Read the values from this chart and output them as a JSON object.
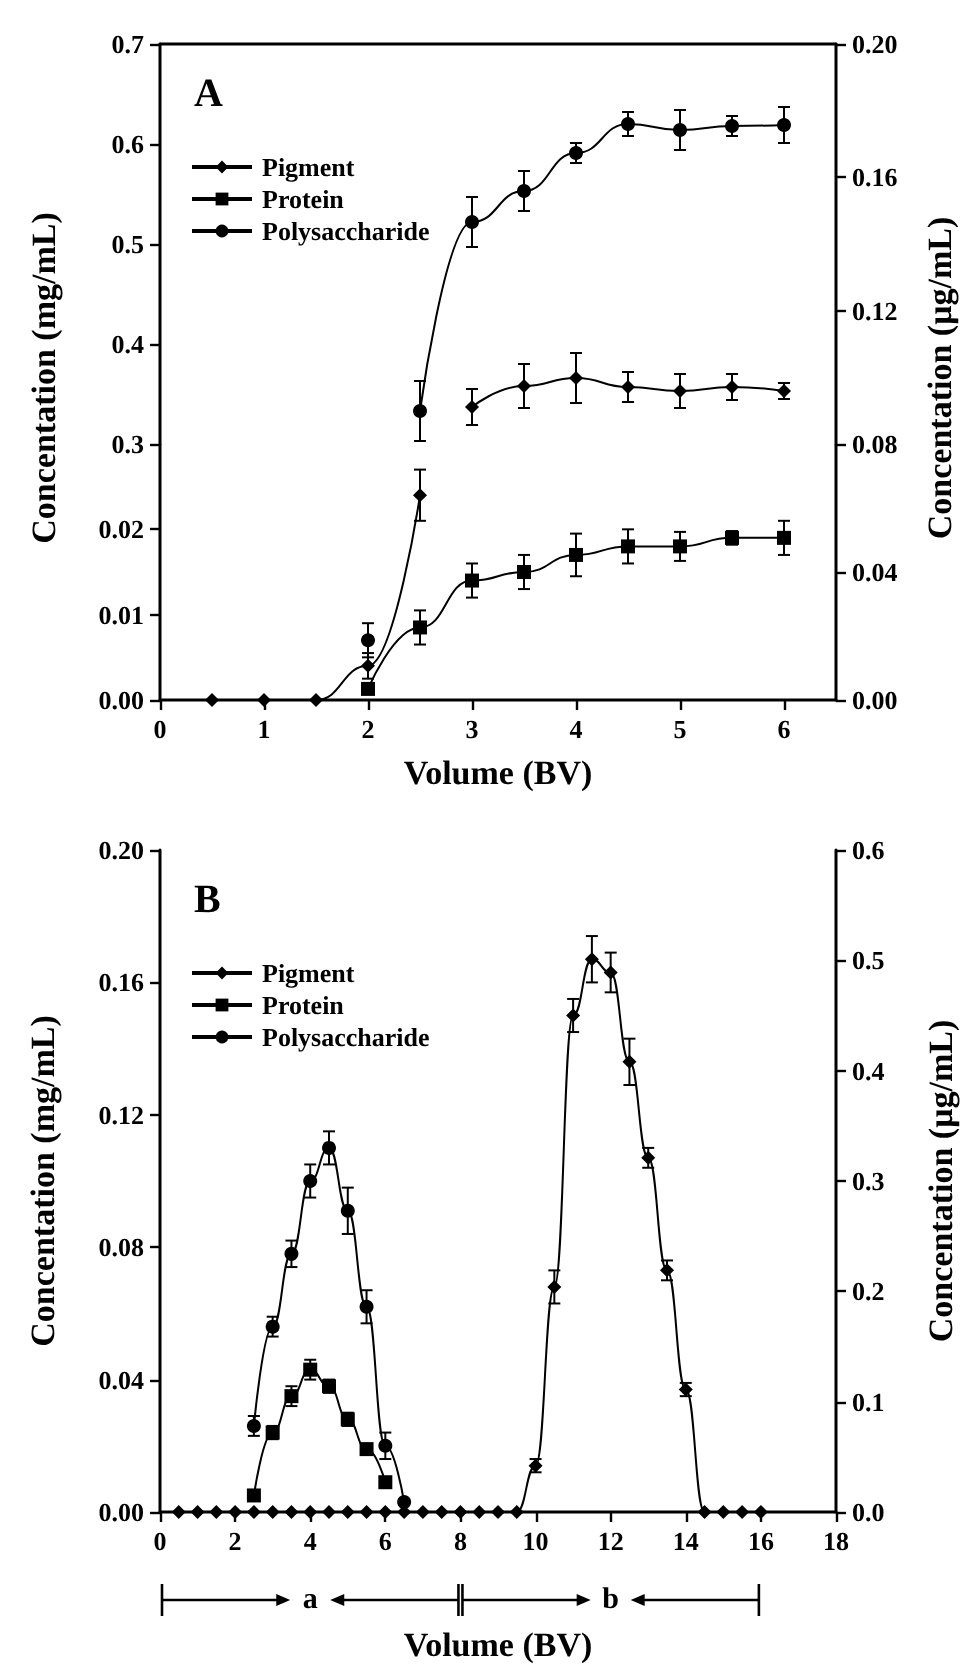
{
  "chart_data": [
    {
      "type": "line",
      "title": "A",
      "ylabel": "Concentation (mg/mL)",
      "y2label": "Concentation (μg/mL)",
      "xlim": [
        0,
        6.5
      ],
      "xticks": [
        0,
        1,
        2,
        3,
        4,
        5,
        6
      ],
      "ylim": [
        0.3,
        0.7
      ],
      "yticks": [
        0.3,
        0.4,
        0.5,
        0.6,
        0.7
      ],
      "y2lim": [
        0.08,
        0.2
      ],
      "y2ticks": [
        {
          "value": 0.08,
          "label": "0.08"
        },
        {
          "value": 0.12,
          "label": "0.12"
        },
        {
          "value": 0.16,
          "label": "0.16"
        },
        {
          "value": 0.2,
          "label": "0.20"
        }
      ],
      "tick_labels": "y",
      "legend": "top left",
      "series": [
        {
          "name": "Pigment",
          "color": "#000000",
          "marker": "diamond",
          "x": [
            3,
            3.5,
            4,
            4.5,
            5,
            5.5,
            6
          ],
          "values": [
            0.337,
            0.358,
            0.366,
            0.357,
            0.353,
            0.357,
            0.353
          ],
          "errors": [
            0.018,
            0.022,
            0.025,
            0.015,
            0.017,
            0.013,
            0.008
          ]
        },
        {
          "name": "Protein",
          "color": "#000000",
          "marker": "square"
        },
        {
          "name": "Polysaccharide",
          "color": "#000000",
          "marker": "circle",
          "x": [
            2.5,
            3,
            3.5,
            4,
            4.5,
            5,
            5.5,
            6
          ],
          "values": [
            0.333,
            0.522,
            0.553,
            0.591,
            0.62,
            0.614,
            0.618,
            0.619
          ],
          "errors": [
            0.03,
            0.025,
            0.02,
            0.01,
            0.012,
            0.02,
            0.01,
            0.018
          ]
        }
      ]
    },
    {
      "type": "line",
      "xlabel": "Volume (BV)",
      "x": [
        0.5,
        1,
        1.5,
        2,
        2.5,
        3,
        3.5,
        4,
        4.5,
        5,
        5.5,
        6
      ],
      "xlim": [
        0,
        6.5
      ],
      "xticks": [
        0,
        1,
        2,
        3,
        4,
        5,
        6
      ],
      "ylim": [
        0,
        0.03
      ],
      "yticks": [
        {
          "value": 0,
          "label": "0.00"
        },
        {
          "value": 0.01,
          "label": "0.01"
        },
        {
          "value": 0.02,
          "label": "0.02"
        }
      ],
      "y2lim": [
        0,
        0.08
      ],
      "y2ticks": [
        {
          "value": 0,
          "label": "0.00"
        },
        {
          "value": 0.04,
          "label": "0.04"
        }
      ],
      "series": [
        {
          "color": "#000000",
          "marker": "diamond",
          "values": [
            0,
            0,
            0,
            0.004,
            0.024,
            null,
            null,
            null,
            null,
            null,
            null,
            null
          ],
          "errors": [
            null,
            null,
            null,
            0.0015,
            0.003,
            null,
            null,
            null,
            null,
            null,
            null,
            null
          ]
        },
        {
          "color": "#000000",
          "marker": "square",
          "values": [
            null,
            null,
            null,
            0.0013,
            0.0085,
            0.014,
            0.015,
            0.017,
            0.018,
            0.018,
            0.019,
            0.019
          ],
          "errors": [
            null,
            null,
            null,
            null,
            0.002,
            0.002,
            0.002,
            0.0025,
            0.002,
            0.0017,
            0.0008,
            0.002
          ]
        },
        {
          "color": "#000000",
          "marker": "circle",
          "values": [
            null,
            null,
            null,
            0.007,
            null,
            null,
            null,
            null,
            null,
            null,
            null,
            null
          ],
          "errors": [
            null,
            null,
            null,
            0.002,
            null,
            null,
            null,
            null,
            null,
            null,
            null,
            null
          ]
        }
      ]
    },
    {
      "type": "line",
      "title": "B",
      "xlabel": "Volume (BV)",
      "ylabel": "Concentation (mg/mL)",
      "y2label": "Concentation (μg/mL)",
      "x": [
        0.5,
        1,
        1.5,
        2,
        2.5,
        3,
        3.5,
        4,
        4.5,
        5,
        5.5,
        6,
        6.5,
        7,
        7.5,
        8,
        8.5,
        9,
        9.5,
        10,
        10.5,
        11,
        11.5,
        12,
        12.5,
        13,
        13.5,
        14,
        14.5,
        15,
        15.5,
        16
      ],
      "xlim": [
        0,
        18
      ],
      "xticks": [
        0,
        2,
        4,
        6,
        8,
        10,
        12,
        14,
        16,
        18
      ],
      "ylim": [
        0,
        0.2
      ],
      "yticks": [
        {
          "value": 0,
          "label": "0.00"
        },
        {
          "value": 0.04,
          "label": "0.04"
        },
        {
          "value": 0.08,
          "label": "0.08"
        },
        {
          "value": 0.12,
          "label": "0.12"
        },
        {
          "value": 0.16,
          "label": "0.16"
        },
        {
          "value": 0.2,
          "label": "0.20"
        }
      ],
      "y2lim": [
        0,
        0.6
      ],
      "y2ticks": [
        {
          "value": 0,
          "label": "0.0"
        },
        {
          "value": 0.1,
          "label": "0.1"
        },
        {
          "value": 0.2,
          "label": "0.2"
        },
        {
          "value": 0.3,
          "label": "0.3"
        },
        {
          "value": 0.4,
          "label": "0.4"
        },
        {
          "value": 0.5,
          "label": "0.5"
        },
        {
          "value": 0.6,
          "label": "0.6"
        }
      ],
      "legend": "top left",
      "annotations": [
        "a",
        "b"
      ],
      "series": [
        {
          "name": "Pigment",
          "color": "#000000",
          "marker": "diamond",
          "values": [
            0,
            0,
            0,
            0,
            0,
            0,
            0,
            0,
            0,
            0,
            0,
            0,
            0,
            0,
            0,
            0,
            0,
            0,
            0,
            0.014,
            0.068,
            0.15,
            0.167,
            0.163,
            0.136,
            0.107,
            0.073,
            0.037,
            0,
            0,
            0,
            0
          ],
          "errors": [
            null,
            null,
            null,
            null,
            null,
            null,
            null,
            null,
            null,
            null,
            null,
            null,
            null,
            null,
            null,
            null,
            null,
            null,
            null,
            0.002,
            0.005,
            0.005,
            0.007,
            0.006,
            0.007,
            0.003,
            0.003,
            0.002,
            null,
            null,
            null,
            null
          ]
        },
        {
          "name": "Protein",
          "color": "#000000",
          "marker": "square",
          "values": [
            null,
            null,
            null,
            null,
            0.005,
            0.024,
            0.035,
            0.043,
            0.038,
            0.028,
            0.019,
            0.009,
            null,
            null,
            null,
            null,
            null,
            null,
            null,
            null,
            null,
            null,
            null,
            null,
            null,
            null,
            null,
            null,
            null,
            null,
            null,
            null
          ],
          "errors": [
            null,
            null,
            null,
            null,
            null,
            0.002,
            0.003,
            0.003,
            0.002,
            0.002,
            null,
            null,
            null,
            null,
            null,
            null,
            null,
            null,
            null,
            null,
            null,
            null,
            null,
            null,
            null,
            null,
            null,
            null,
            null,
            null,
            null,
            null
          ]
        },
        {
          "name": "Polysaccharide",
          "color": "#000000",
          "marker": "circle",
          "values": [
            null,
            null,
            null,
            null,
            0.026,
            0.056,
            0.078,
            0.1,
            0.11,
            0.091,
            0.062,
            0.02,
            0.003,
            null,
            null,
            null,
            null,
            null,
            null,
            null,
            null,
            null,
            null,
            null,
            null,
            null,
            null,
            null,
            null,
            null,
            null,
            null
          ],
          "errors": [
            null,
            null,
            null,
            null,
            0.003,
            0.003,
            0.004,
            0.005,
            0.005,
            0.007,
            0.005,
            0.004,
            null,
            null,
            null,
            null,
            null,
            null,
            null,
            null,
            null,
            null,
            null,
            null,
            null,
            null,
            null,
            null,
            null,
            null,
            null,
            null
          ]
        }
      ]
    }
  ]
}
